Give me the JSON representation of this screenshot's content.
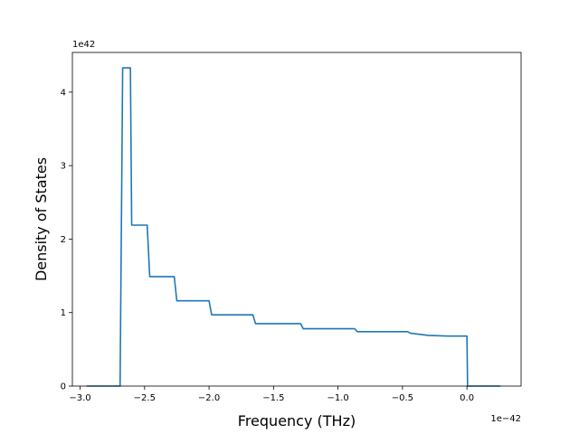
{
  "chart_data": {
    "type": "line",
    "title": "",
    "xlabel": "Frequency (THz)",
    "ylabel": "Density of States",
    "x_offset_label": "1e−42",
    "y_offset_label": "1e42",
    "xlim": [
      -3.06,
      0.42
    ],
    "ylim": [
      0,
      4.54
    ],
    "x_ticks": [
      -3.0,
      -2.5,
      -2.0,
      -1.5,
      -1.0,
      -0.5,
      0.0
    ],
    "x_tick_labels": [
      "−3.0",
      "−2.5",
      "−2.0",
      "−1.5",
      "−1.0",
      "−0.5",
      "0.0"
    ],
    "y_ticks": [
      0,
      1,
      2,
      3,
      4
    ],
    "y_tick_labels": [
      "0",
      "1",
      "2",
      "3",
      "4"
    ],
    "grid": false,
    "legend": "none",
    "series": [
      {
        "color": "#1f77b4",
        "x": [
          -2.95,
          -2.69,
          -2.67,
          -2.63,
          -2.61,
          -2.6,
          -2.48,
          -2.46,
          -2.27,
          -2.25,
          -2.0,
          -1.98,
          -1.66,
          -1.64,
          -1.29,
          -1.27,
          -0.87,
          -0.85,
          -0.46,
          -0.44,
          -0.3,
          -0.15,
          0.0,
          0.005,
          0.26
        ],
        "y": [
          0.0,
          0.0,
          4.33,
          4.33,
          4.33,
          2.19,
          2.19,
          1.49,
          1.49,
          1.16,
          1.16,
          0.97,
          0.97,
          0.85,
          0.85,
          0.78,
          0.78,
          0.74,
          0.74,
          0.72,
          0.69,
          0.68,
          0.68,
          0.0,
          0.0
        ]
      }
    ]
  }
}
